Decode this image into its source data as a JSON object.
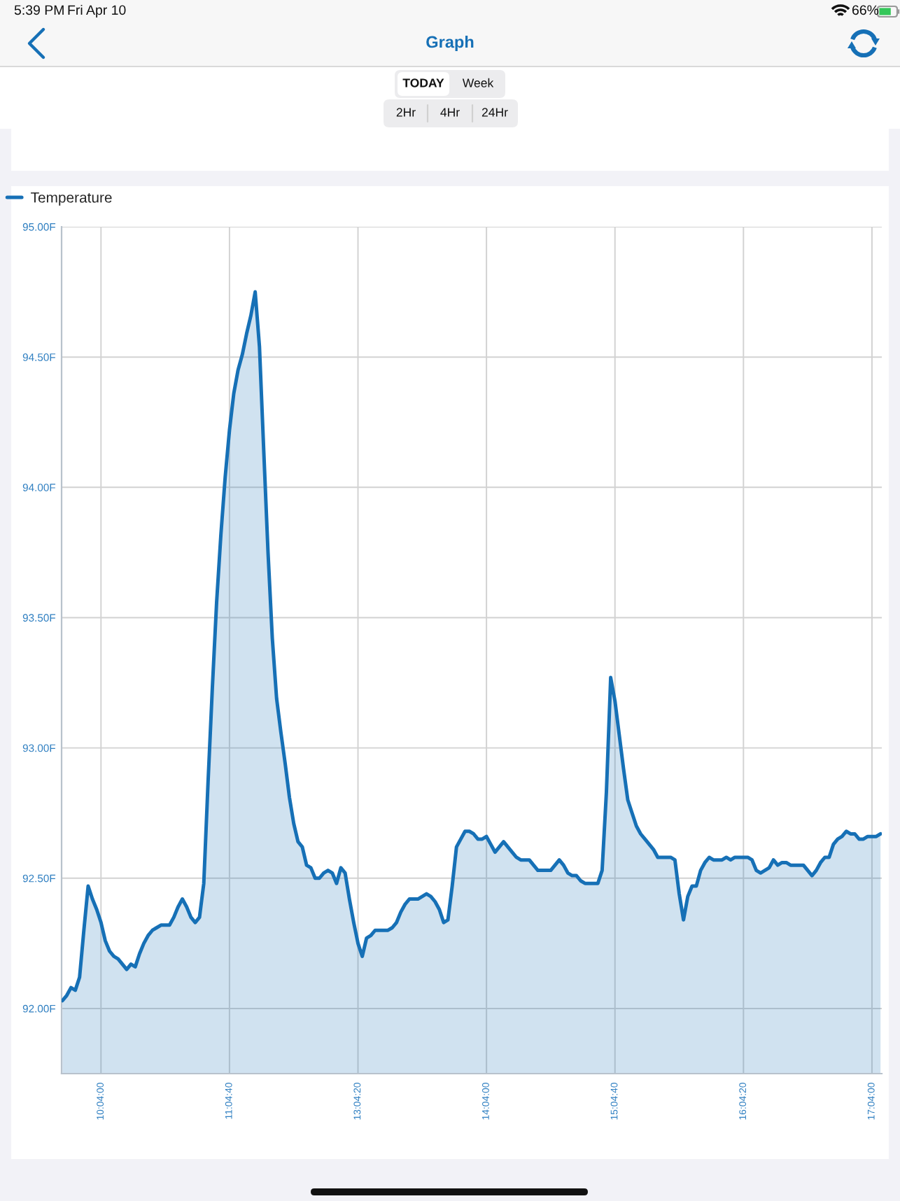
{
  "chart_data": {
    "type": "area",
    "title": "Graph",
    "annotations": [
      "5:39 PM",
      "Fri Apr 10",
      "66%",
      "TODAY",
      "Week",
      "2Hr",
      "4Hr",
      "24Hr"
    ],
    "legend": "top left",
    "grid": true,
    "line_style": "solid",
    "categories": [
      null,
      null,
      null,
      null,
      null,
      null,
      null,
      null,
      null,
      "10:04:00",
      null,
      null,
      null,
      null,
      null,
      null,
      null,
      null,
      null,
      null,
      null,
      null,
      null,
      null,
      null,
      null,
      null,
      null,
      null,
      null,
      null,
      null,
      null,
      null,
      null,
      null,
      null,
      null,
      null,
      "11:04:40",
      null,
      null,
      null,
      null,
      null,
      null,
      null,
      null,
      null,
      null,
      null,
      null,
      null,
      null,
      null,
      null,
      null,
      null,
      null,
      null,
      null,
      null,
      null,
      null,
      null,
      null,
      null,
      null,
      null,
      "13:04:20",
      null,
      null,
      null,
      null,
      null,
      null,
      null,
      null,
      null,
      null,
      null,
      null,
      null,
      null,
      null,
      null,
      null,
      null,
      null,
      null,
      null,
      null,
      null,
      null,
      null,
      null,
      null,
      null,
      null,
      "14:04:00",
      null,
      null,
      null,
      null,
      null,
      null,
      null,
      null,
      null,
      null,
      null,
      null,
      null,
      null,
      null,
      null,
      null,
      null,
      null,
      null,
      null,
      null,
      null,
      null,
      null,
      null,
      null,
      null,
      null,
      "15:04:40",
      null,
      null,
      null,
      null,
      null,
      null,
      null,
      null,
      null,
      null,
      null,
      null,
      null,
      null,
      null,
      null,
      null,
      null,
      null,
      null,
      null,
      null,
      null,
      null,
      null,
      null,
      null,
      null,
      null,
      "16:04:20",
      null,
      null,
      null,
      null,
      null,
      null,
      null,
      null,
      null,
      null,
      null,
      null,
      null,
      null,
      null,
      null,
      null,
      null,
      null,
      null,
      null,
      null,
      null,
      null,
      null,
      null,
      null,
      null,
      null,
      "17:04:00",
      null,
      null
    ],
    "series": [
      {
        "name": "Temperature",
        "color": "#1670b6",
        "values": [
          92.03,
          92.05,
          92.08,
          92.07,
          92.12,
          92.3,
          92.47,
          92.42,
          92.38,
          92.33,
          92.26,
          92.22,
          92.2,
          92.19,
          92.17,
          92.15,
          92.17,
          92.16,
          92.21,
          92.25,
          92.28,
          92.3,
          92.31,
          92.32,
          92.32,
          92.32,
          92.35,
          92.39,
          92.42,
          92.39,
          92.35,
          92.33,
          92.35,
          92.48,
          92.87,
          93.23,
          93.56,
          93.82,
          94.04,
          94.22,
          94.36,
          94.45,
          94.51,
          94.59,
          94.66,
          94.75,
          94.54,
          94.14,
          93.75,
          93.42,
          93.19,
          93.06,
          92.94,
          92.81,
          92.71,
          92.64,
          92.62,
          92.55,
          92.54,
          92.5,
          92.5,
          92.52,
          92.53,
          92.52,
          92.48,
          92.54,
          92.52,
          92.42,
          92.33,
          92.25,
          92.2,
          92.27,
          92.28,
          92.3,
          92.3,
          92.3,
          92.3,
          92.31,
          92.33,
          92.37,
          92.4,
          92.42,
          92.42,
          92.42,
          92.43,
          92.44,
          92.43,
          92.41,
          92.38,
          92.33,
          92.34,
          92.47,
          92.62,
          92.65,
          92.68,
          92.68,
          92.67,
          92.65,
          92.65,
          92.66,
          92.63,
          92.6,
          92.62,
          92.64,
          92.62,
          92.6,
          92.58,
          92.57,
          92.57,
          92.57,
          92.55,
          92.53,
          92.53,
          92.53,
          92.53,
          92.55,
          92.57,
          92.55,
          92.52,
          92.51,
          92.51,
          92.49,
          92.48,
          92.48,
          92.48,
          92.48,
          92.53,
          92.83,
          93.27,
          93.18,
          93.05,
          92.92,
          92.8,
          92.75,
          92.7,
          92.67,
          92.65,
          92.63,
          92.61,
          92.58,
          92.58,
          92.58,
          92.58,
          92.57,
          92.44,
          92.34,
          92.43,
          92.47,
          92.47,
          92.53,
          92.56,
          92.58,
          92.57,
          92.57,
          92.57,
          92.58,
          92.57,
          92.58,
          92.58,
          92.58,
          92.58,
          92.57,
          92.53,
          92.52,
          92.53,
          92.54,
          92.57,
          92.55,
          92.56,
          92.56,
          92.55,
          92.55,
          92.55,
          92.55,
          92.53,
          92.51,
          92.53,
          92.56,
          92.58,
          92.58,
          92.63,
          92.65,
          92.66,
          92.68,
          92.67,
          92.67,
          92.65,
          92.65,
          92.66,
          92.66,
          92.66,
          92.67
        ]
      }
    ],
    "ylim": [
      91.75,
      95.0
    ],
    "yticks": [
      {
        "value": 92.0,
        "label": "92.00F"
      },
      {
        "value": 92.5,
        "label": "92.50F"
      },
      {
        "value": 93.0,
        "label": "93.00F"
      },
      {
        "value": 93.5,
        "label": "93.50F"
      },
      {
        "value": 94.0,
        "label": "94.00F"
      },
      {
        "value": 94.5,
        "label": "94.50F"
      },
      {
        "value": 95.0,
        "label": "95.00F"
      }
    ]
  }
}
